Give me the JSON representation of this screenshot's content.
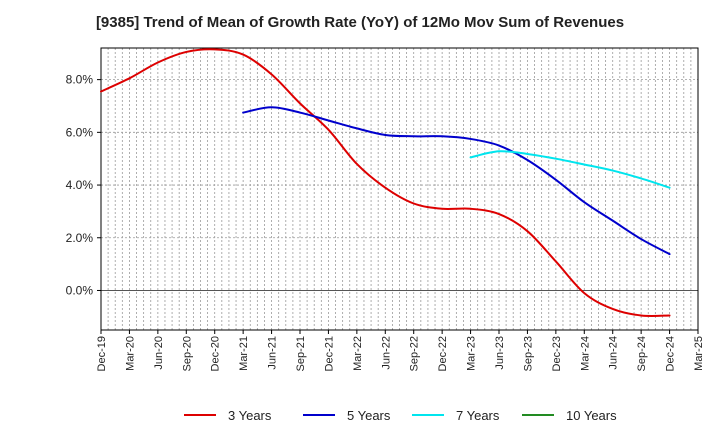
{
  "chart_data": {
    "type": "line",
    "title": "[9385]  Trend of Mean of Growth Rate (YoY) of 12Mo Mov Sum of Revenues",
    "xlabel": "",
    "ylabel": "",
    "ylim": [
      -1.5,
      9.2
    ],
    "yticks": [
      0.0,
      2.0,
      4.0,
      6.0,
      8.0
    ],
    "ytick_labels": [
      "0.0%",
      "2.0%",
      "4.0%",
      "6.0%",
      "8.0%"
    ],
    "x_tick_labels": [
      "Dec-19",
      "Mar-20",
      "Jun-20",
      "Sep-20",
      "Dec-20",
      "Mar-21",
      "Jun-21",
      "Sep-21",
      "Dec-21",
      "Mar-22",
      "Jun-22",
      "Sep-22",
      "Dec-22",
      "Mar-23",
      "Jun-23",
      "Sep-23",
      "Dec-23",
      "Mar-24",
      "Jun-24",
      "Sep-24",
      "Dec-24",
      "Mar-25"
    ],
    "grid": true,
    "legend_position": "bottom",
    "series": [
      {
        "name": "3 Years",
        "color": "#dd0000",
        "points": [
          [
            0,
            7.55
          ],
          [
            1,
            8.05
          ],
          [
            2,
            8.65
          ],
          [
            3,
            9.05
          ],
          [
            4,
            9.15
          ],
          [
            5,
            8.95
          ],
          [
            6,
            8.2
          ],
          [
            7,
            7.1
          ],
          [
            8,
            6.1
          ],
          [
            9,
            4.8
          ],
          [
            10,
            3.9
          ],
          [
            11,
            3.3
          ],
          [
            12,
            3.1
          ],
          [
            13,
            3.1
          ],
          [
            14,
            2.9
          ],
          [
            15,
            2.25
          ],
          [
            16,
            1.1
          ],
          [
            17,
            -0.1
          ],
          [
            18,
            -0.7
          ],
          [
            19,
            -0.95
          ],
          [
            20,
            -0.95
          ]
        ]
      },
      {
        "name": "5 Years",
        "color": "#0000cc",
        "points": [
          [
            5,
            6.75
          ],
          [
            6,
            6.95
          ],
          [
            7,
            6.75
          ],
          [
            8,
            6.45
          ],
          [
            9,
            6.15
          ],
          [
            10,
            5.9
          ],
          [
            11,
            5.85
          ],
          [
            12,
            5.85
          ],
          [
            13,
            5.75
          ],
          [
            14,
            5.5
          ],
          [
            15,
            4.95
          ],
          [
            16,
            4.2
          ],
          [
            17,
            3.35
          ],
          [
            18,
            2.65
          ],
          [
            19,
            1.95
          ],
          [
            20,
            1.38
          ]
        ]
      },
      {
        "name": "7 Years",
        "color": "#00e5ee",
        "points": [
          [
            13,
            5.05
          ],
          [
            14,
            5.28
          ],
          [
            15,
            5.18
          ],
          [
            16,
            5.0
          ],
          [
            17,
            4.78
          ],
          [
            18,
            4.55
          ],
          [
            19,
            4.25
          ],
          [
            20,
            3.9
          ]
        ]
      },
      {
        "name": "10 Years",
        "color": "#228b22",
        "points": []
      }
    ]
  }
}
